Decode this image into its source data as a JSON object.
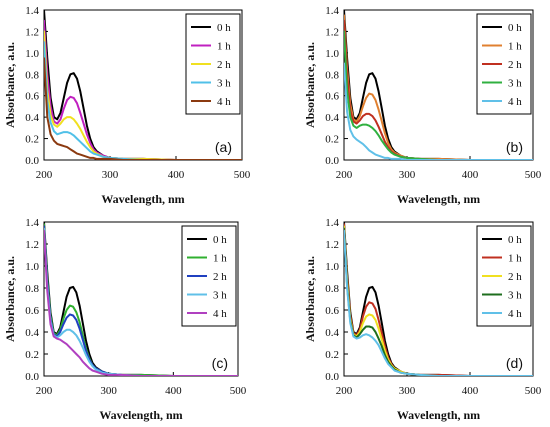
{
  "chart_data": [
    {
      "type": "line",
      "panel_label": "(a)",
      "xlabel": "Wavelength, nm",
      "ylabel": "Absorbance, a.u.",
      "xlim": [
        200,
        500
      ],
      "ylim": [
        0,
        1.4
      ],
      "xticks": [
        200,
        300,
        400,
        500
      ],
      "yticks": [
        0.0,
        0.2,
        0.4,
        0.6,
        0.8,
        1.0,
        1.2,
        1.4
      ],
      "x": [
        200,
        205,
        210,
        215,
        220,
        225,
        230,
        235,
        240,
        245,
        250,
        255,
        260,
        265,
        270,
        275,
        280,
        290,
        300,
        320,
        350,
        400,
        450,
        500
      ],
      "series": [
        {
          "name": "0 h",
          "color": "#000000",
          "values": [
            1.4,
            0.95,
            0.58,
            0.4,
            0.38,
            0.44,
            0.58,
            0.72,
            0.8,
            0.81,
            0.76,
            0.64,
            0.48,
            0.32,
            0.2,
            0.12,
            0.08,
            0.04,
            0.02,
            0.01,
            0.01,
            0.0,
            0.0,
            0.0
          ]
        },
        {
          "name": "1 h",
          "color": "#c020c0",
          "values": [
            1.3,
            0.8,
            0.5,
            0.36,
            0.34,
            0.38,
            0.48,
            0.56,
            0.59,
            0.58,
            0.53,
            0.44,
            0.34,
            0.24,
            0.16,
            0.1,
            0.07,
            0.04,
            0.02,
            0.01,
            0.01,
            0.0,
            0.0,
            0.0
          ]
        },
        {
          "name": "2 h",
          "color": "#f0e020",
          "values": [
            1.2,
            0.65,
            0.42,
            0.33,
            0.31,
            0.34,
            0.38,
            0.4,
            0.4,
            0.38,
            0.34,
            0.29,
            0.23,
            0.17,
            0.12,
            0.08,
            0.06,
            0.03,
            0.02,
            0.01,
            0.01,
            0.0,
            0.0,
            0.0
          ]
        },
        {
          "name": "3 h",
          "color": "#50c0e8",
          "values": [
            1.1,
            0.55,
            0.35,
            0.27,
            0.24,
            0.25,
            0.26,
            0.26,
            0.25,
            0.23,
            0.2,
            0.17,
            0.14,
            0.11,
            0.08,
            0.06,
            0.05,
            0.03,
            0.02,
            0.01,
            0.0,
            0.0,
            0.0,
            0.0
          ]
        },
        {
          "name": "4 h",
          "color": "#8b3a10",
          "values": [
            0.95,
            0.4,
            0.24,
            0.18,
            0.15,
            0.14,
            0.13,
            0.12,
            0.1,
            0.08,
            0.06,
            0.05,
            0.04,
            0.03,
            0.02,
            0.02,
            0.01,
            0.01,
            0.01,
            0.0,
            0.0,
            0.0,
            0.0,
            0.0
          ]
        }
      ]
    },
    {
      "type": "line",
      "panel_label": "(b)",
      "xlabel": "Wavelength, nm",
      "ylabel": "Absorbance, a.u.",
      "xlim": [
        200,
        500
      ],
      "ylim": [
        0,
        1.4
      ],
      "xticks": [
        200,
        300,
        400,
        500
      ],
      "yticks": [
        0.0,
        0.2,
        0.4,
        0.6,
        0.8,
        1.0,
        1.2,
        1.4
      ],
      "x": [
        200,
        205,
        210,
        215,
        220,
        225,
        230,
        235,
        240,
        245,
        250,
        255,
        260,
        265,
        270,
        275,
        280,
        290,
        300,
        320,
        350,
        400,
        450,
        500
      ],
      "series": [
        {
          "name": "0 h",
          "color": "#000000",
          "values": [
            1.4,
            0.95,
            0.58,
            0.4,
            0.38,
            0.44,
            0.58,
            0.72,
            0.8,
            0.81,
            0.76,
            0.64,
            0.48,
            0.32,
            0.2,
            0.12,
            0.08,
            0.04,
            0.02,
            0.01,
            0.01,
            0.0,
            0.0,
            0.0
          ]
        },
        {
          "name": "1 h",
          "color": "#e08030",
          "values": [
            1.35,
            0.85,
            0.52,
            0.38,
            0.36,
            0.41,
            0.5,
            0.58,
            0.62,
            0.61,
            0.56,
            0.47,
            0.36,
            0.25,
            0.16,
            0.1,
            0.07,
            0.04,
            0.02,
            0.01,
            0.01,
            0.0,
            0.0,
            0.0
          ]
        },
        {
          "name": "2 h",
          "color": "#c03020",
          "values": [
            1.3,
            0.78,
            0.46,
            0.36,
            0.34,
            0.37,
            0.41,
            0.43,
            0.43,
            0.41,
            0.37,
            0.31,
            0.24,
            0.17,
            0.12,
            0.08,
            0.06,
            0.03,
            0.02,
            0.01,
            0.0,
            0.0,
            0.0,
            0.0
          ]
        },
        {
          "name": "3 h",
          "color": "#30b040",
          "values": [
            1.2,
            0.65,
            0.4,
            0.32,
            0.3,
            0.32,
            0.33,
            0.33,
            0.32,
            0.3,
            0.27,
            0.23,
            0.18,
            0.14,
            0.1,
            0.07,
            0.05,
            0.03,
            0.02,
            0.01,
            0.0,
            0.0,
            0.0,
            0.0
          ]
        },
        {
          "name": "4 h",
          "color": "#60c0e8",
          "values": [
            0.9,
            0.45,
            0.28,
            0.22,
            0.19,
            0.17,
            0.15,
            0.12,
            0.09,
            0.07,
            0.05,
            0.04,
            0.03,
            0.02,
            0.02,
            0.01,
            0.01,
            0.01,
            0.0,
            0.0,
            0.0,
            0.0,
            0.0,
            0.0
          ]
        }
      ]
    },
    {
      "type": "line",
      "panel_label": "(c)",
      "xlabel": "Wavelength, nm",
      "ylabel": "Absorbance, a.u.",
      "xlim": [
        200,
        500
      ],
      "ylim": [
        0,
        1.4
      ],
      "xticks": [
        200,
        300,
        400,
        500
      ],
      "yticks": [
        0.0,
        0.2,
        0.4,
        0.6,
        0.8,
        1.0,
        1.2,
        1.4
      ],
      "x": [
        200,
        205,
        210,
        215,
        220,
        225,
        230,
        235,
        240,
        245,
        250,
        255,
        260,
        265,
        270,
        275,
        280,
        290,
        300,
        320,
        350,
        400,
        450,
        500
      ],
      "series": [
        {
          "name": "0 h",
          "color": "#000000",
          "values": [
            1.4,
            0.95,
            0.58,
            0.4,
            0.38,
            0.44,
            0.58,
            0.72,
            0.8,
            0.81,
            0.76,
            0.64,
            0.48,
            0.32,
            0.2,
            0.12,
            0.08,
            0.04,
            0.02,
            0.01,
            0.01,
            0.0,
            0.0,
            0.0
          ]
        },
        {
          "name": "1 h",
          "color": "#30b030",
          "values": [
            1.38,
            0.9,
            0.55,
            0.39,
            0.37,
            0.42,
            0.52,
            0.6,
            0.64,
            0.63,
            0.58,
            0.49,
            0.37,
            0.25,
            0.16,
            0.1,
            0.07,
            0.04,
            0.02,
            0.01,
            0.01,
            0.0,
            0.0,
            0.0
          ]
        },
        {
          "name": "2 h",
          "color": "#2040c0",
          "values": [
            1.36,
            0.86,
            0.52,
            0.38,
            0.36,
            0.4,
            0.47,
            0.53,
            0.56,
            0.55,
            0.51,
            0.43,
            0.33,
            0.23,
            0.15,
            0.1,
            0.07,
            0.04,
            0.02,
            0.01,
            0.0,
            0.0,
            0.0,
            0.0
          ]
        },
        {
          "name": "3 h",
          "color": "#60c0e8",
          "values": [
            1.34,
            0.82,
            0.5,
            0.37,
            0.35,
            0.37,
            0.4,
            0.42,
            0.42,
            0.4,
            0.37,
            0.32,
            0.26,
            0.19,
            0.13,
            0.09,
            0.06,
            0.03,
            0.02,
            0.01,
            0.0,
            0.0,
            0.0,
            0.0
          ]
        },
        {
          "name": "4 h",
          "color": "#b040c0",
          "values": [
            1.32,
            0.78,
            0.47,
            0.36,
            0.34,
            0.33,
            0.31,
            0.29,
            0.26,
            0.23,
            0.2,
            0.17,
            0.13,
            0.1,
            0.07,
            0.05,
            0.04,
            0.02,
            0.01,
            0.01,
            0.0,
            0.0,
            0.0,
            0.0
          ]
        }
      ]
    },
    {
      "type": "line",
      "panel_label": "(d)",
      "xlabel": "Wavelength, nm",
      "ylabel": "Absorbance, a.u.",
      "xlim": [
        200,
        500
      ],
      "ylim": [
        0,
        1.4
      ],
      "xticks": [
        200,
        300,
        400,
        500
      ],
      "yticks": [
        0.0,
        0.2,
        0.4,
        0.6,
        0.8,
        1.0,
        1.2,
        1.4
      ],
      "x": [
        200,
        205,
        210,
        215,
        220,
        225,
        230,
        235,
        240,
        245,
        250,
        255,
        260,
        265,
        270,
        275,
        280,
        290,
        300,
        320,
        350,
        400,
        450,
        500
      ],
      "series": [
        {
          "name": "0 h",
          "color": "#000000",
          "values": [
            1.4,
            0.95,
            0.58,
            0.4,
            0.38,
            0.44,
            0.58,
            0.72,
            0.8,
            0.81,
            0.76,
            0.64,
            0.48,
            0.32,
            0.2,
            0.12,
            0.08,
            0.04,
            0.02,
            0.01,
            0.01,
            0.0,
            0.0,
            0.0
          ]
        },
        {
          "name": "1 h",
          "color": "#c03020",
          "values": [
            1.38,
            0.9,
            0.55,
            0.39,
            0.37,
            0.42,
            0.54,
            0.63,
            0.67,
            0.66,
            0.61,
            0.51,
            0.39,
            0.27,
            0.17,
            0.11,
            0.07,
            0.04,
            0.02,
            0.01,
            0.01,
            0.0,
            0.0,
            0.0
          ]
        },
        {
          "name": "2 h",
          "color": "#f0e020",
          "values": [
            1.36,
            0.86,
            0.52,
            0.38,
            0.36,
            0.4,
            0.48,
            0.54,
            0.56,
            0.55,
            0.51,
            0.43,
            0.33,
            0.23,
            0.15,
            0.1,
            0.07,
            0.04,
            0.02,
            0.01,
            0.0,
            0.0,
            0.0,
            0.0
          ]
        },
        {
          "name": "3 h",
          "color": "#1e6e1e",
          "values": [
            1.34,
            0.82,
            0.5,
            0.37,
            0.35,
            0.38,
            0.42,
            0.45,
            0.45,
            0.44,
            0.4,
            0.34,
            0.27,
            0.19,
            0.13,
            0.09,
            0.06,
            0.03,
            0.02,
            0.01,
            0.0,
            0.0,
            0.0,
            0.0
          ]
        },
        {
          "name": "4 h",
          "color": "#60c0e8",
          "values": [
            1.32,
            0.8,
            0.48,
            0.36,
            0.34,
            0.35,
            0.37,
            0.38,
            0.37,
            0.35,
            0.32,
            0.28,
            0.22,
            0.16,
            0.11,
            0.08,
            0.05,
            0.03,
            0.02,
            0.01,
            0.0,
            0.0,
            0.0,
            0.0
          ]
        }
      ]
    }
  ]
}
